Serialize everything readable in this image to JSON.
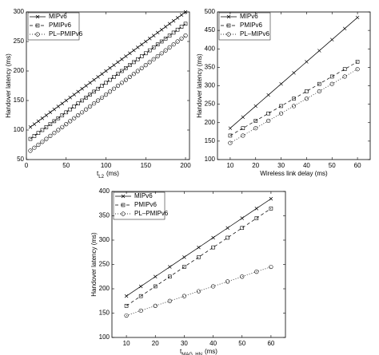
{
  "chart_data": [
    {
      "type": "line",
      "x_label": {
        "main": "t",
        "sub": "L2",
        "unit": "(ms)"
      },
      "y_label": "Handover latency (ms)",
      "xlim": [
        0,
        205
      ],
      "xticks": [
        0,
        50,
        100,
        150,
        200
      ],
      "ylim": [
        50,
        300
      ],
      "yticks": [
        50,
        100,
        150,
        200,
        250,
        300
      ],
      "legend": "upper left",
      "x": [
        5,
        10,
        15,
        20,
        25,
        30,
        35,
        40,
        45,
        50,
        55,
        60,
        65,
        70,
        75,
        80,
        85,
        90,
        95,
        100,
        105,
        110,
        115,
        120,
        125,
        130,
        135,
        140,
        145,
        150,
        155,
        160,
        165,
        170,
        175,
        180,
        185,
        190,
        195,
        200
      ],
      "series": [
        {
          "name": "MIPv6",
          "color": "#000000",
          "marker": "x",
          "dash": "solid",
          "values": [
            105,
            110,
            115,
            120,
            125,
            130,
            135,
            140,
            145,
            150,
            155,
            160,
            165,
            170,
            175,
            180,
            185,
            190,
            195,
            200,
            205,
            210,
            215,
            220,
            225,
            230,
            235,
            240,
            245,
            250,
            255,
            260,
            265,
            270,
            275,
            280,
            285,
            290,
            295,
            300
          ]
        },
        {
          "name": "PMIPv6",
          "color": "#000000",
          "marker": "square",
          "dash": "dashed",
          "values": [
            85,
            90,
            95,
            100,
            105,
            110,
            115,
            120,
            125,
            130,
            135,
            140,
            145,
            150,
            155,
            160,
            165,
            170,
            175,
            180,
            185,
            190,
            195,
            200,
            205,
            210,
            215,
            220,
            225,
            230,
            235,
            240,
            245,
            250,
            255,
            260,
            265,
            270,
            275,
            280
          ]
        },
        {
          "name": "PL–PMIPv6",
          "color": "#000000",
          "marker": "circle",
          "dash": "dotted",
          "values": [
            65,
            70,
            75,
            80,
            85,
            90,
            95,
            100,
            105,
            110,
            115,
            120,
            125,
            130,
            135,
            140,
            145,
            150,
            155,
            160,
            165,
            170,
            175,
            180,
            185,
            190,
            195,
            200,
            205,
            210,
            215,
            220,
            225,
            230,
            235,
            240,
            245,
            250,
            255,
            260
          ]
        }
      ]
    },
    {
      "type": "line",
      "x_label": {
        "main": "Wireless link delay (ms)"
      },
      "y_label": "Handover latency (ms)",
      "xlim": [
        5,
        65
      ],
      "xticks": [
        10,
        20,
        30,
        40,
        50,
        60
      ],
      "ylim": [
        100,
        500
      ],
      "yticks": [
        100,
        150,
        200,
        250,
        300,
        350,
        400,
        450,
        500
      ],
      "legend": "upper left",
      "x": [
        10,
        15,
        20,
        25,
        30,
        35,
        40,
        45,
        50,
        55,
        60
      ],
      "series": [
        {
          "name": "MIPv6",
          "color": "#000000",
          "marker": "x",
          "dash": "solid",
          "values": [
            185,
            215,
            245,
            275,
            305,
            335,
            365,
            395,
            425,
            455,
            485
          ]
        },
        {
          "name": "PMIPv6",
          "color": "#000000",
          "marker": "square",
          "dash": "dashed",
          "values": [
            165,
            185,
            205,
            225,
            245,
            265,
            285,
            305,
            325,
            345,
            365
          ]
        },
        {
          "name": "PL–MIPv6",
          "color": "#000000",
          "marker": "circle",
          "dash": "dotted",
          "values": [
            145,
            165,
            185,
            205,
            225,
            245,
            265,
            285,
            305,
            325,
            345
          ]
        }
      ]
    },
    {
      "type": "line",
      "x_label": {
        "main": "t",
        "sub": "MAG_HN",
        "unit": "(ms)"
      },
      "y_label": "Handover latency (ms)",
      "xlim": [
        5,
        65
      ],
      "xticks": [
        10,
        20,
        30,
        40,
        50,
        60
      ],
      "ylim": [
        100,
        400
      ],
      "yticks": [
        100,
        150,
        200,
        250,
        300,
        350,
        400
      ],
      "legend": "upper left",
      "x": [
        10,
        15,
        20,
        25,
        30,
        35,
        40,
        45,
        50,
        55,
        60
      ],
      "series": [
        {
          "name": "MIPv6",
          "color": "#000000",
          "marker": "x",
          "dash": "solid",
          "values": [
            185,
            205,
            225,
            245,
            265,
            285,
            305,
            325,
            345,
            365,
            385
          ]
        },
        {
          "name": "PMIPv6",
          "color": "#000000",
          "marker": "square",
          "dash": "dashed",
          "values": [
            165,
            185,
            205,
            225,
            245,
            265,
            285,
            305,
            325,
            345,
            365
          ]
        },
        {
          "name": "PL–PMIPv6",
          "color": "#000000",
          "marker": "circle",
          "dash": "dotted",
          "values": [
            145,
            155,
            165,
            175,
            185,
            195,
            205,
            215,
            225,
            235,
            245
          ]
        }
      ]
    }
  ]
}
